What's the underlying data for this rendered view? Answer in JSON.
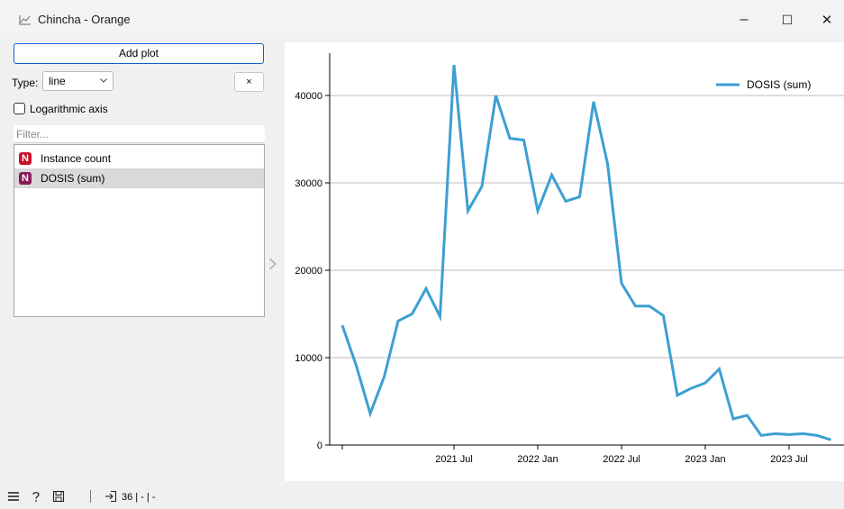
{
  "window": {
    "title": "Chincha - Orange",
    "controls": {
      "minimize": "–",
      "maximize": "☐",
      "close": "✕"
    }
  },
  "controls": {
    "add_plot_label": "Add plot",
    "type_label": "Type:",
    "type_value": "line",
    "remove_label": "×",
    "log_axis_label": "Logarithmic axis",
    "filter_placeholder": "Filter..."
  },
  "variables": [
    {
      "badge": "N",
      "label": "Instance count",
      "color": "#c8102e",
      "selected": false
    },
    {
      "badge": "N",
      "label": "DOSIS (sum)",
      "color": "#8b1a5a",
      "selected": true
    }
  ],
  "statusbar": {
    "count_text": "36 | - | -"
  },
  "colors": {
    "series": "#3d9fd3",
    "accent": "#0a64c8"
  },
  "chart_data": {
    "type": "line",
    "x": [
      "2020-11",
      "2020-12",
      "2021-01",
      "2021-02",
      "2021-03",
      "2021-04",
      "2021-05",
      "2021-06",
      "2021-07",
      "2021-08",
      "2021-09",
      "2021-10",
      "2021-11",
      "2021-12",
      "2022-01",
      "2022-02",
      "2022-03",
      "2022-04",
      "2022-05",
      "2022-06",
      "2022-07",
      "2022-08",
      "2022-09",
      "2022-10",
      "2022-11",
      "2022-12",
      "2023-01",
      "2023-02",
      "2023-03",
      "2023-04",
      "2023-05",
      "2023-06",
      "2023-07",
      "2023-08",
      "2023-09",
      "2023-10"
    ],
    "series": [
      {
        "name": "DOSIS (sum)",
        "values": [
          13700,
          9100,
          3600,
          7800,
          14200,
          15000,
          17900,
          14700,
          43500,
          26800,
          29600,
          40000,
          35100,
          34900,
          26800,
          30900,
          27900,
          28400,
          39300,
          32200,
          18500,
          15900,
          15900,
          14800,
          5700,
          6500,
          7100,
          8700,
          3000,
          3400,
          1100,
          1300,
          1200,
          1300,
          1100,
          600
        ]
      }
    ],
    "x_tick_labels": [
      "2021 Jul",
      "2022 Jan",
      "2022 Jul",
      "2023 Jan",
      "2023 Jul"
    ],
    "x_tick_dates": [
      "2021-07",
      "2022-01",
      "2022-07",
      "2023-01",
      "2023-07"
    ],
    "y_ticks": [
      0,
      10000,
      20000,
      30000,
      40000
    ],
    "ylim": [
      0,
      45000
    ],
    "grid": "horizontal",
    "legend": "top-right"
  }
}
